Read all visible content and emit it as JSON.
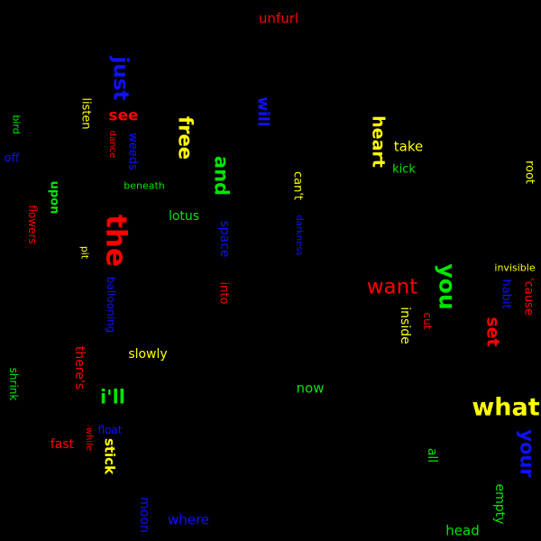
{
  "palette": {
    "background": "#000000",
    "red": "#ff0000",
    "green": "#00e600",
    "blue": "#1010ff",
    "yellow": "#ffff00"
  },
  "words": {
    "unfurl": "unfurl",
    "just": "just",
    "will": "will",
    "see": "see",
    "listen": "listen",
    "bird": "bird",
    "free": "free",
    "dance": "dance",
    "weeds": "weeds",
    "off": "off",
    "heart": "heart",
    "take": "take",
    "kick": "kick",
    "root": "root",
    "and": "and",
    "beneath": "beneath",
    "upon": "upon",
    "cant": "can't",
    "flowers": "flowers",
    "the": "the",
    "lotus": "lotus",
    "space": "space",
    "darkness": "darkness",
    "pit": "pit",
    "invisible": "invisible",
    "you": "you",
    "habit": "habit",
    "cause": "'cause",
    "want": "want",
    "into": "into",
    "ballooning": "ballooning",
    "inside": "inside",
    "cut": "cut",
    "set": "set",
    "theres": "there's",
    "slowly": "slowly",
    "shrink": "shrink",
    "ill": "i'll",
    "now": "now",
    "what": "what",
    "float": "float",
    "fast": "fast",
    "while": "while",
    "stick": "stick",
    "your": "your",
    "all": "all",
    "empty": "empty",
    "moon": "moon",
    "where": "where",
    "head": "head"
  }
}
